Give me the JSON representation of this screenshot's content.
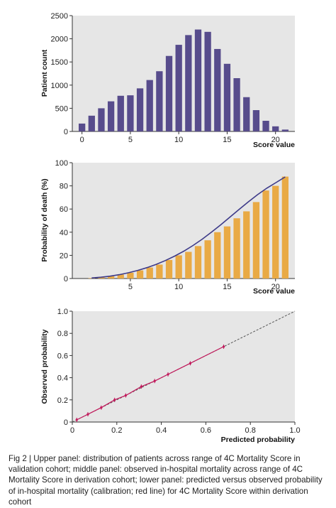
{
  "caption": {
    "text": "Fig 2 | Upper panel: distribution of patients across range of 4C Mortality Score in validation cohort; middle panel: observed in-hospital mortality across range of 4C Mortality Score in derivation cohort; lower panel: predicted versus observed probability of in-hospital mortality (calibration; red line) for 4C Mortality Score within derivation cohort"
  },
  "colors": {
    "bar_purple": "#574c8c",
    "bar_orange": "#e9aa45",
    "curve_navy": "#3d3a89",
    "calibration_red": "#c2185b",
    "panel_background": "#e6e6e6"
  },
  "chart_data": [
    {
      "type": "bar",
      "x": [
        0,
        1,
        2,
        3,
        4,
        5,
        6,
        7,
        8,
        9,
        10,
        11,
        12,
        13,
        14,
        15,
        16,
        17,
        18,
        19,
        20,
        21
      ],
      "values": [
        170,
        340,
        500,
        650,
        770,
        780,
        930,
        1110,
        1300,
        1630,
        1870,
        2080,
        2200,
        2150,
        1780,
        1460,
        1150,
        740,
        460,
        230,
        110,
        40
      ],
      "xlabel": "Score value",
      "ylabel": "Patient count",
      "xlim": [
        -1,
        22
      ],
      "ylim": [
        0,
        2500
      ],
      "xticks": [
        "0",
        "5",
        "10",
        "15",
        "20"
      ],
      "yticks": [
        "0",
        "500",
        "1000",
        "1500",
        "2000",
        "2500"
      ],
      "grid": false
    },
    {
      "type": "bar",
      "x": [
        1,
        2,
        3,
        4,
        5,
        6,
        7,
        8,
        9,
        10,
        11,
        12,
        13,
        14,
        15,
        16,
        17,
        18,
        19,
        20,
        21
      ],
      "values": [
        0.4,
        1.0,
        2.0,
        3.5,
        5.0,
        7.0,
        9.5,
        12.0,
        16.0,
        20.0,
        23.0,
        28.0,
        33.0,
        40.0,
        45.0,
        52.0,
        58.0,
        66.0,
        76.0,
        80.0,
        88.0
      ],
      "curve": [
        0.5,
        1.1,
        2.0,
        3.3,
        5.0,
        7.0,
        9.4,
        12.2,
        15.5,
        19.3,
        23.6,
        28.5,
        34.0,
        40.0,
        46.3,
        53.0,
        59.7,
        66.2,
        72.4,
        78.0,
        82.8,
        87.7
      ],
      "curve_x": [
        1,
        2,
        3,
        4,
        5,
        6,
        7,
        8,
        9,
        10,
        11,
        12,
        13,
        14,
        15,
        16,
        17,
        18,
        19,
        20,
        21,
        21
      ],
      "xlabel": "Score value",
      "ylabel": "Probability of death (%)",
      "xlim": [
        -1,
        22
      ],
      "ylim": [
        0,
        100
      ],
      "xticks": [
        "5",
        "10",
        "15",
        "20"
      ],
      "yticks": [
        "0",
        "20",
        "40",
        "60",
        "80",
        "100"
      ],
      "grid": false
    },
    {
      "type": "line",
      "x": [
        0.02,
        0.07,
        0.13,
        0.19,
        0.24,
        0.31,
        0.37,
        0.43,
        0.53,
        0.68
      ],
      "values": [
        0.02,
        0.07,
        0.13,
        0.2,
        0.24,
        0.32,
        0.37,
        0.43,
        0.53,
        0.68
      ],
      "reference_line": [
        [
          0,
          0
        ],
        [
          1.0,
          1.0
        ]
      ],
      "xlabel": "Predicted probability",
      "ylabel": "Observed probability",
      "xlim": [
        0,
        1.0
      ],
      "ylim": [
        0,
        1.0
      ],
      "xticks": [
        "0",
        "0.2",
        "0.4",
        "0.6",
        "0.8",
        "1.0"
      ],
      "yticks": [
        "0",
        "0.2",
        "0.4",
        "0.6",
        "0.8",
        "1.0"
      ],
      "grid": false
    }
  ]
}
